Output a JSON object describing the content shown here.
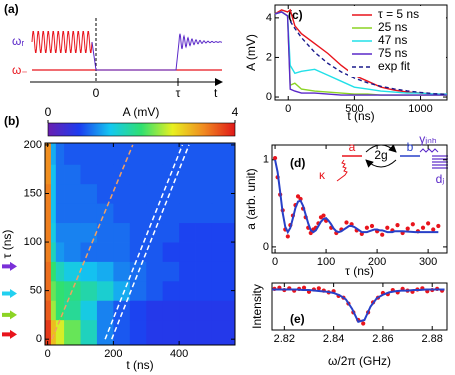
{
  "diagram": {
    "label": "(a)",
    "levels": [
      "ωᵣ",
      "ω₋"
    ],
    "times": [
      "0",
      "τ"
    ],
    "axis": "t"
  },
  "chart_data": [
    {
      "type": "heatmap",
      "panel": "(b)",
      "xlabel": "t (ns)",
      "ylabel": "τ (ns)",
      "xbins": [
        -8,
        10,
        25,
        50,
        100,
        150,
        200,
        250,
        300,
        350,
        400,
        450,
        500,
        570
      ],
      "ybins": [
        -6,
        20,
        40,
        60,
        80,
        100,
        120,
        140,
        160,
        180,
        202
      ],
      "z": [
        [
          3.8,
          3.0,
          2.6,
          2.2,
          1.6,
          1.0,
          0.8,
          0.7,
          0.6,
          0.6,
          0.6,
          0.6,
          0.6
        ],
        [
          3.6,
          2.4,
          2.0,
          1.8,
          1.4,
          1.0,
          0.8,
          0.7,
          0.6,
          0.6,
          0.6,
          0.6,
          0.6
        ],
        [
          3.5,
          2.2,
          2.0,
          1.9,
          1.7,
          1.5,
          1.2,
          0.9,
          0.8,
          0.7,
          0.7,
          0.7,
          0.7
        ],
        [
          3.5,
          2.0,
          1.6,
          1.4,
          1.3,
          1.2,
          1.0,
          0.9,
          0.8,
          0.8,
          0.7,
          0.7,
          0.7
        ],
        [
          3.4,
          1.6,
          1.1,
          1.0,
          0.9,
          0.9,
          0.9,
          0.8,
          0.8,
          0.7,
          0.7,
          0.7,
          0.7
        ],
        [
          3.4,
          1.4,
          1.0,
          1.0,
          1.0,
          0.9,
          0.9,
          0.8,
          0.8,
          0.8,
          0.7,
          0.7,
          0.7
        ],
        [
          3.4,
          1.3,
          0.9,
          0.9,
          0.9,
          0.9,
          0.8,
          0.8,
          0.8,
          0.8,
          0.8,
          0.8,
          0.8
        ],
        [
          3.4,
          1.3,
          0.9,
          0.9,
          0.9,
          0.8,
          0.8,
          0.8,
          0.8,
          0.8,
          0.8,
          0.8,
          0.8
        ],
        [
          3.3,
          1.3,
          0.9,
          0.9,
          0.8,
          0.8,
          0.8,
          0.8,
          0.8,
          0.8,
          0.8,
          0.8,
          0.8
        ],
        [
          3.3,
          1.2,
          0.9,
          0.8,
          0.8,
          0.8,
          0.8,
          0.8,
          0.8,
          0.8,
          0.8,
          0.8,
          0.8
        ]
      ],
      "xlim": [
        -8,
        570
      ],
      "ylim": [
        -6,
        202
      ],
      "xticks": [
        0,
        200,
        400
      ],
      "yticks": [
        0,
        50,
        100,
        150,
        200
      ],
      "colormap": [
        "#6a1fb0",
        "#1c3cf0",
        "#14c8f0",
        "#30e070",
        "#e8f020",
        "#f08a20",
        "#e01818"
      ],
      "clim": [
        0,
        4
      ],
      "cticks": [
        0,
        4
      ],
      "colorbar_label": "A (mV)",
      "guides": [
        {
          "x": [
            13,
            259
          ],
          "y": [
            0,
            200
          ],
          "color": "#f4a060"
        },
        {
          "x": [
            175,
            410
          ],
          "y": [
            0,
            200
          ],
          "color": "#ffffff"
        },
        {
          "x": [
            195,
            430
          ],
          "y": [
            0,
            200
          ],
          "color": "#ffffff"
        }
      ],
      "markers": [
        {
          "value": 75,
          "color": "#7a30d8"
        },
        {
          "value": 47,
          "color": "#22d0f0"
        },
        {
          "value": 25,
          "color": "#8cd424"
        },
        {
          "value": 5,
          "color": "#e8141c"
        }
      ]
    },
    {
      "type": "line",
      "panel": "(c)",
      "xlabel": "t (ns)",
      "ylabel": "A (mV)",
      "legend": "upper right",
      "x": [
        -100,
        -50,
        -5,
        15,
        50,
        100,
        200,
        300,
        400,
        500,
        600,
        700,
        800,
        900,
        1000,
        1100,
        1200
      ],
      "series": [
        {
          "name": "τ = 5 ns",
          "color": "#e8141c",
          "values": [
            4.2,
            4.4,
            4.3,
            4.4,
            3.6,
            3.2,
            2.7,
            2.2,
            1.6,
            1.1,
            0.8,
            0.5,
            0.35,
            0.25,
            0.2,
            0.15,
            0.15
          ]
        },
        {
          "name": "25 ns",
          "color": "#8cd424",
          "values": [
            4.2,
            4.3,
            4.1,
            0.6,
            0.7,
            0.4,
            0.3,
            0.25,
            0.2,
            0.15,
            0.15,
            0.1,
            0.1,
            0.1,
            0.1,
            0.1,
            0.1
          ]
        },
        {
          "name": "47 ns",
          "color": "#22e0e8",
          "values": [
            4.2,
            4.3,
            4.1,
            1.6,
            1.2,
            1.3,
            1.4,
            1.1,
            0.8,
            0.5,
            0.4,
            0.3,
            0.25,
            0.2,
            0.2,
            0.15,
            0.15
          ]
        },
        {
          "name": "75 ns",
          "color": "#5a28c8",
          "values": [
            4.2,
            4.3,
            4.1,
            0.4,
            0.3,
            0.2,
            0.2,
            0.15,
            0.1,
            0.1,
            0.1,
            0.1,
            0.1,
            0.1,
            0.1,
            0.1,
            0.1
          ]
        },
        {
          "name": "exp fit",
          "color": "#1a1a8c",
          "dash": true,
          "values": [
            null,
            null,
            null,
            3.83,
            3.47,
            3.0,
            2.26,
            1.7,
            1.27,
            0.96,
            0.72,
            0.54,
            0.41,
            0.31,
            0.23,
            0.17,
            0.13
          ]
        }
      ],
      "xlim": [
        -100,
        1200
      ],
      "ylim": [
        -0.15,
        4.65
      ],
      "xticks": [
        0,
        500,
        1000
      ],
      "yticks": [
        0,
        2,
        4
      ]
    },
    {
      "type": "scatter",
      "panel": "(d)",
      "xlabel": "τ (ns)",
      "ylabel": "a (arb. unit)",
      "annotations": [
        "a",
        "2g",
        "b",
        "κ",
        "γᵢₙₕ",
        "dⱼ"
      ],
      "series": [
        {
          "mode": "markers",
          "color": "#e8141c",
          "x": [
            0,
            5,
            10,
            15,
            20,
            25,
            30,
            35,
            40,
            45,
            50,
            55,
            60,
            65,
            70,
            75,
            80,
            85,
            90,
            95,
            100,
            110,
            120,
            130,
            140,
            150,
            160,
            170,
            180,
            190,
            200,
            210,
            220,
            230,
            240,
            250,
            260,
            270,
            280,
            290,
            300,
            310,
            320
          ],
          "values": [
            1.02,
            0.8,
            0.6,
            0.42,
            0.2,
            0.12,
            0.25,
            0.36,
            0.48,
            0.58,
            0.55,
            0.44,
            0.34,
            0.22,
            0.16,
            0.2,
            0.22,
            0.27,
            0.34,
            0.36,
            0.3,
            0.22,
            0.16,
            0.2,
            0.28,
            0.26,
            0.19,
            0.15,
            0.22,
            0.24,
            0.18,
            0.14,
            0.22,
            0.19,
            0.25,
            0.16,
            0.21,
            0.26,
            0.18,
            0.22,
            0.27,
            0.2,
            0.24
          ]
        },
        {
          "mode": "line",
          "color": "#2840c8",
          "x": [
            0,
            5,
            10,
            15,
            20,
            25,
            30,
            35,
            40,
            45,
            50,
            55,
            60,
            65,
            70,
            75,
            80,
            85,
            90,
            95,
            100,
            105,
            110,
            115,
            120,
            125,
            130,
            135,
            140,
            145,
            150,
            155,
            160,
            165,
            170,
            175,
            180,
            185,
            190,
            195,
            200,
            205,
            210,
            215,
            220,
            225,
            230,
            235,
            240,
            245,
            250,
            275,
            300,
            320
          ],
          "values": [
            1.0,
            0.86,
            0.63,
            0.39,
            0.23,
            0.17,
            0.22,
            0.33,
            0.45,
            0.52,
            0.53,
            0.47,
            0.37,
            0.27,
            0.19,
            0.17,
            0.19,
            0.24,
            0.29,
            0.32,
            0.33,
            0.3,
            0.26,
            0.21,
            0.18,
            0.17,
            0.18,
            0.2,
            0.22,
            0.24,
            0.24,
            0.23,
            0.21,
            0.19,
            0.17,
            0.17,
            0.17,
            0.18,
            0.19,
            0.2,
            0.2,
            0.19,
            0.19,
            0.18,
            0.17,
            0.17,
            0.17,
            0.18,
            0.18,
            0.18,
            0.18,
            0.17,
            0.17,
            0.17
          ]
        }
      ],
      "xlim": [
        -6,
        337
      ],
      "ylim": [
        -0.07,
        1.17
      ],
      "xticks": [
        0,
        100,
        200,
        300
      ],
      "yticks": [
        0,
        1
      ]
    },
    {
      "type": "scatter",
      "panel": "(e)",
      "xlabel": "ω/2π (GHz)",
      "ylabel": "Intensity",
      "series": [
        {
          "mode": "markers",
          "color": "#e8141c",
          "x": [
            2.816,
            2.818,
            2.82,
            2.822,
            2.824,
            2.826,
            2.828,
            2.83,
            2.832,
            2.834,
            2.836,
            2.838,
            2.84,
            2.842,
            2.844,
            2.846,
            2.848,
            2.85,
            2.852,
            2.854,
            2.856,
            2.858,
            2.86,
            2.862,
            2.864,
            2.866,
            2.868,
            2.87,
            2.872,
            2.874,
            2.876,
            2.878,
            2.88,
            2.882,
            2.884
          ],
          "values": [
            0.95,
            0.97,
            0.93,
            0.96,
            0.92,
            0.95,
            0.97,
            0.9,
            0.94,
            0.96,
            0.92,
            0.89,
            0.91,
            0.83,
            0.8,
            0.7,
            0.55,
            0.42,
            0.36,
            0.55,
            0.72,
            0.8,
            0.88,
            0.86,
            0.93,
            0.89,
            0.95,
            0.92,
            0.9,
            0.94,
            0.96,
            0.91,
            0.93,
            0.95,
            0.92
          ]
        },
        {
          "mode": "line",
          "color": "#2840c8",
          "x": [
            2.815,
            2.8175,
            2.82,
            2.8225,
            2.825,
            2.8275,
            2.83,
            2.8325,
            2.835,
            2.8375,
            2.84,
            2.8425,
            2.845,
            2.8475,
            2.85,
            2.8525,
            2.855,
            2.8575,
            2.86,
            2.8625,
            2.865,
            2.8675,
            2.87,
            2.8725,
            2.875,
            2.8775,
            2.88,
            2.8825,
            2.885
          ],
          "values": [
            0.94,
            0.94,
            0.94,
            0.94,
            0.94,
            0.93,
            0.93,
            0.92,
            0.91,
            0.9,
            0.88,
            0.84,
            0.77,
            0.61,
            0.39,
            0.42,
            0.65,
            0.79,
            0.85,
            0.89,
            0.91,
            0.92,
            0.92,
            0.93,
            0.93,
            0.94,
            0.94,
            0.94,
            0.94
          ]
        }
      ],
      "xlim": [
        2.815,
        2.886
      ],
      "ylim": [
        0.25,
        1.05
      ],
      "xticks": [
        2.82,
        2.84,
        2.86,
        2.88
      ]
    }
  ]
}
